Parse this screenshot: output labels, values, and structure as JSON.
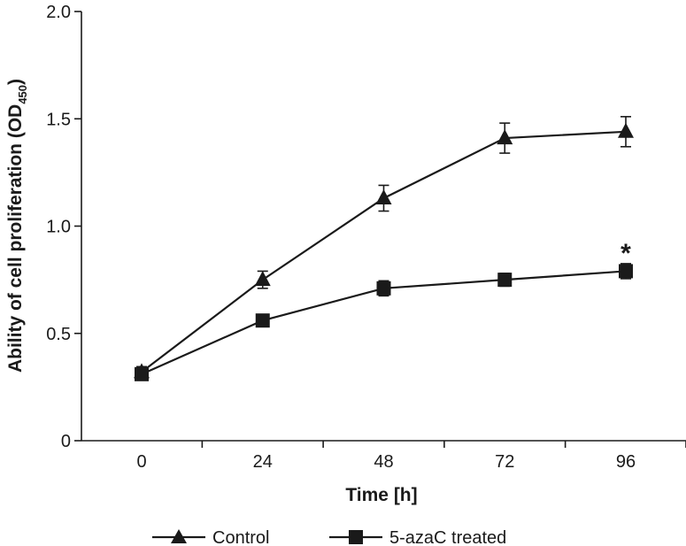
{
  "chart_data": {
    "type": "line",
    "xlabel": "Time [h]",
    "ylabel": "Ability of cell proliferation (OD",
    "ylabel_subscript": "450",
    "ylabel_close": ")",
    "x": [
      0,
      24,
      48,
      72,
      96
    ],
    "xticks": [
      "0",
      "24",
      "48",
      "72",
      "96"
    ],
    "yticks": [
      "0",
      "0.5",
      "1.0",
      "1.5",
      "2.0"
    ],
    "ytick_values": [
      0,
      0.5,
      1.0,
      1.5,
      2.0
    ],
    "ylim": [
      0,
      2.0
    ],
    "grid": false,
    "legend_position": "bottom",
    "series": [
      {
        "name": "Control",
        "marker": "triangle",
        "values": [
          0.32,
          0.75,
          1.13,
          1.41,
          1.44
        ],
        "errors": [
          0.025,
          0.04,
          0.06,
          0.07,
          0.07
        ]
      },
      {
        "name": "5-azaC treated",
        "marker": "square",
        "values": [
          0.31,
          0.56,
          0.71,
          0.75,
          0.79
        ],
        "errors": [
          0.025,
          0.025,
          0.035,
          0.03,
          0.035
        ]
      }
    ],
    "annotations": [
      {
        "text": "*",
        "series": 1,
        "x": 96
      }
    ]
  }
}
